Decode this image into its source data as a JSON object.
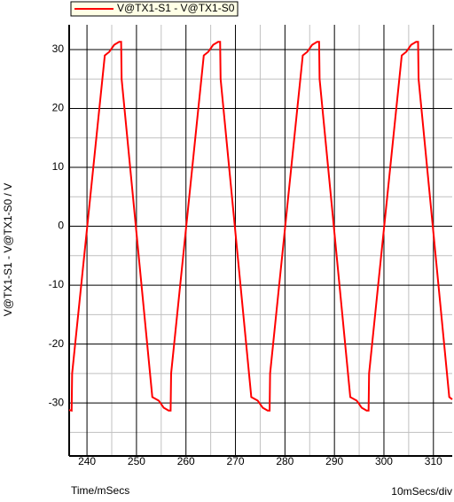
{
  "chart_data": {
    "type": "line",
    "x_label": "Time/mSecs",
    "x_scale_label": "10mSecs/div",
    "y_label": "V@TX1-S1 - V@TX1-S0 / V",
    "x": [
      236.4,
      236.9,
      237.0,
      243.6,
      244.5,
      245.5,
      246.5,
      246.9,
      247.0,
      253.2,
      254.5,
      255.5,
      256.5,
      256.9,
      257.0,
      263.6,
      264.5,
      265.5,
      266.5,
      266.9,
      267.0,
      273.2,
      274.5,
      275.5,
      276.5,
      276.9,
      277.0,
      283.6,
      284.5,
      285.5,
      286.5,
      286.9,
      287.0,
      293.2,
      294.5,
      295.5,
      296.5,
      296.9,
      297.0,
      303.6,
      304.5,
      305.5,
      306.5,
      306.9,
      307.0,
      313.2,
      313.8
    ],
    "series": [
      {
        "name": "V@TX1-S1 - V@TX1-S0",
        "color": "#ff0000",
        "values": [
          -31.2,
          -31.3,
          -25,
          29,
          29.6,
          30.8,
          31.3,
          31.3,
          25,
          -29,
          -29.6,
          -30.8,
          -31.3,
          -31.3,
          -25,
          29,
          29.6,
          30.8,
          31.3,
          31.3,
          25,
          -29,
          -29.6,
          -30.8,
          -31.3,
          -31.3,
          -25,
          29,
          29.6,
          30.8,
          31.3,
          31.3,
          25,
          -29,
          -29.6,
          -30.8,
          -31.3,
          -31.3,
          -25,
          29,
          29.6,
          30.8,
          31.3,
          31.3,
          25,
          -29,
          -29.4
        ]
      }
    ],
    "xlim": [
      236.4,
      313.8
    ],
    "ylim": [
      -39,
      34.2
    ],
    "xticks": [
      240,
      250,
      260,
      270,
      280,
      290,
      300,
      310
    ],
    "yticks": [
      -30,
      -20,
      -10,
      0,
      10,
      20,
      30
    ],
    "x_minor_grid": [
      245,
      255,
      265,
      275,
      285,
      295,
      305
    ],
    "y_minor_grid": [
      -35,
      -25,
      -15,
      -5,
      5,
      15,
      25
    ],
    "grid": true
  }
}
